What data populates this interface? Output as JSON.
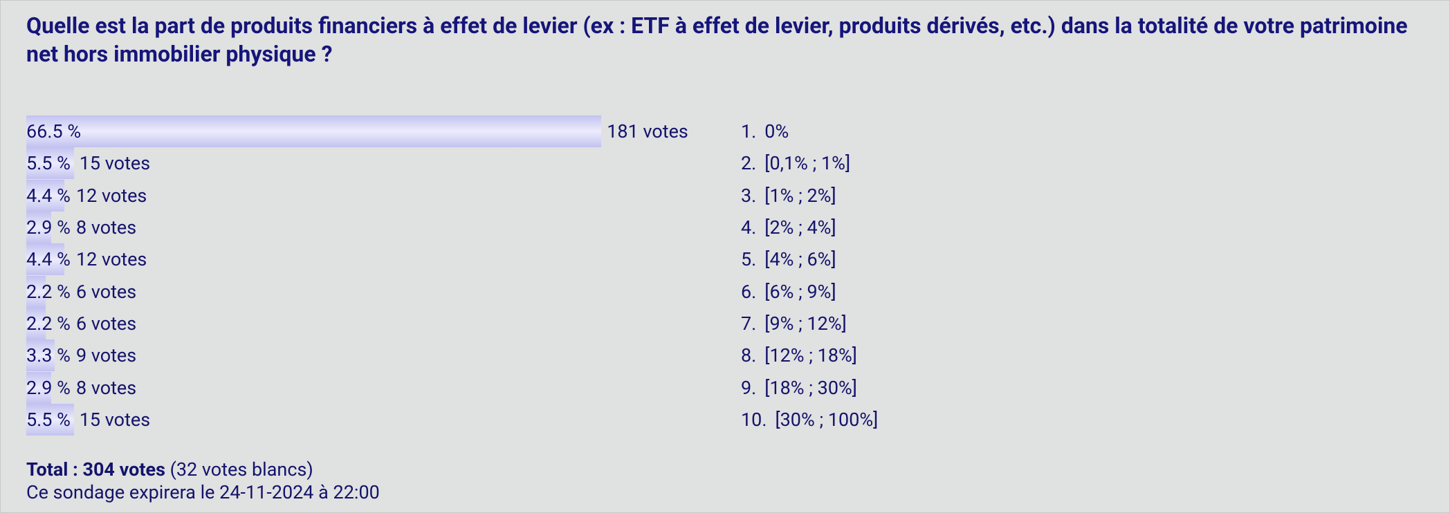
{
  "poll": {
    "question": "Quelle est la part de produits financiers à effet de levier (ex : ETF à effet de levier, produits dérivés, etc.) dans la totalité de votre patrimoine net hors immobilier physique ?",
    "rows": [
      {
        "percent": 66.5,
        "percent_label": "66.5 %",
        "votes": "181 votes",
        "number": "1.",
        "option": "0%"
      },
      {
        "percent": 5.5,
        "percent_label": "5.5 %",
        "votes": "15 votes",
        "number": "2.",
        "option": "[0,1% ; 1%]"
      },
      {
        "percent": 4.4,
        "percent_label": "4.4 %",
        "votes": "12 votes",
        "number": "3.",
        "option": "[1% ; 2%]"
      },
      {
        "percent": 2.9,
        "percent_label": "2.9 %",
        "votes": "8 votes",
        "number": "4.",
        "option": "[2% ; 4%]"
      },
      {
        "percent": 4.4,
        "percent_label": "4.4 %",
        "votes": "12 votes",
        "number": "5.",
        "option": "[4% ; 6%]"
      },
      {
        "percent": 2.2,
        "percent_label": "2.2 %",
        "votes": "6 votes",
        "number": "6.",
        "option": "[6% ; 9%]"
      },
      {
        "percent": 2.2,
        "percent_label": "2.2 %",
        "votes": "6 votes",
        "number": "7.",
        "option": "[9% ; 12%]"
      },
      {
        "percent": 3.3,
        "percent_label": "3.3 %",
        "votes": "9 votes",
        "number": "8.",
        "option": "[12% ; 18%]"
      },
      {
        "percent": 2.9,
        "percent_label": "2.9 %",
        "votes": "8 votes",
        "number": "9.",
        "option": "[18% ; 30%]"
      },
      {
        "percent": 5.5,
        "percent_label": "5.5 %",
        "votes": "15 votes",
        "number": "10.",
        "option": "[30% ; 100%]"
      }
    ],
    "total": "Total : 304 votes",
    "blank": "(32 votes blancs)",
    "expiry": "Ce sondage expirera le 24-11-2024 à 22:00"
  }
}
